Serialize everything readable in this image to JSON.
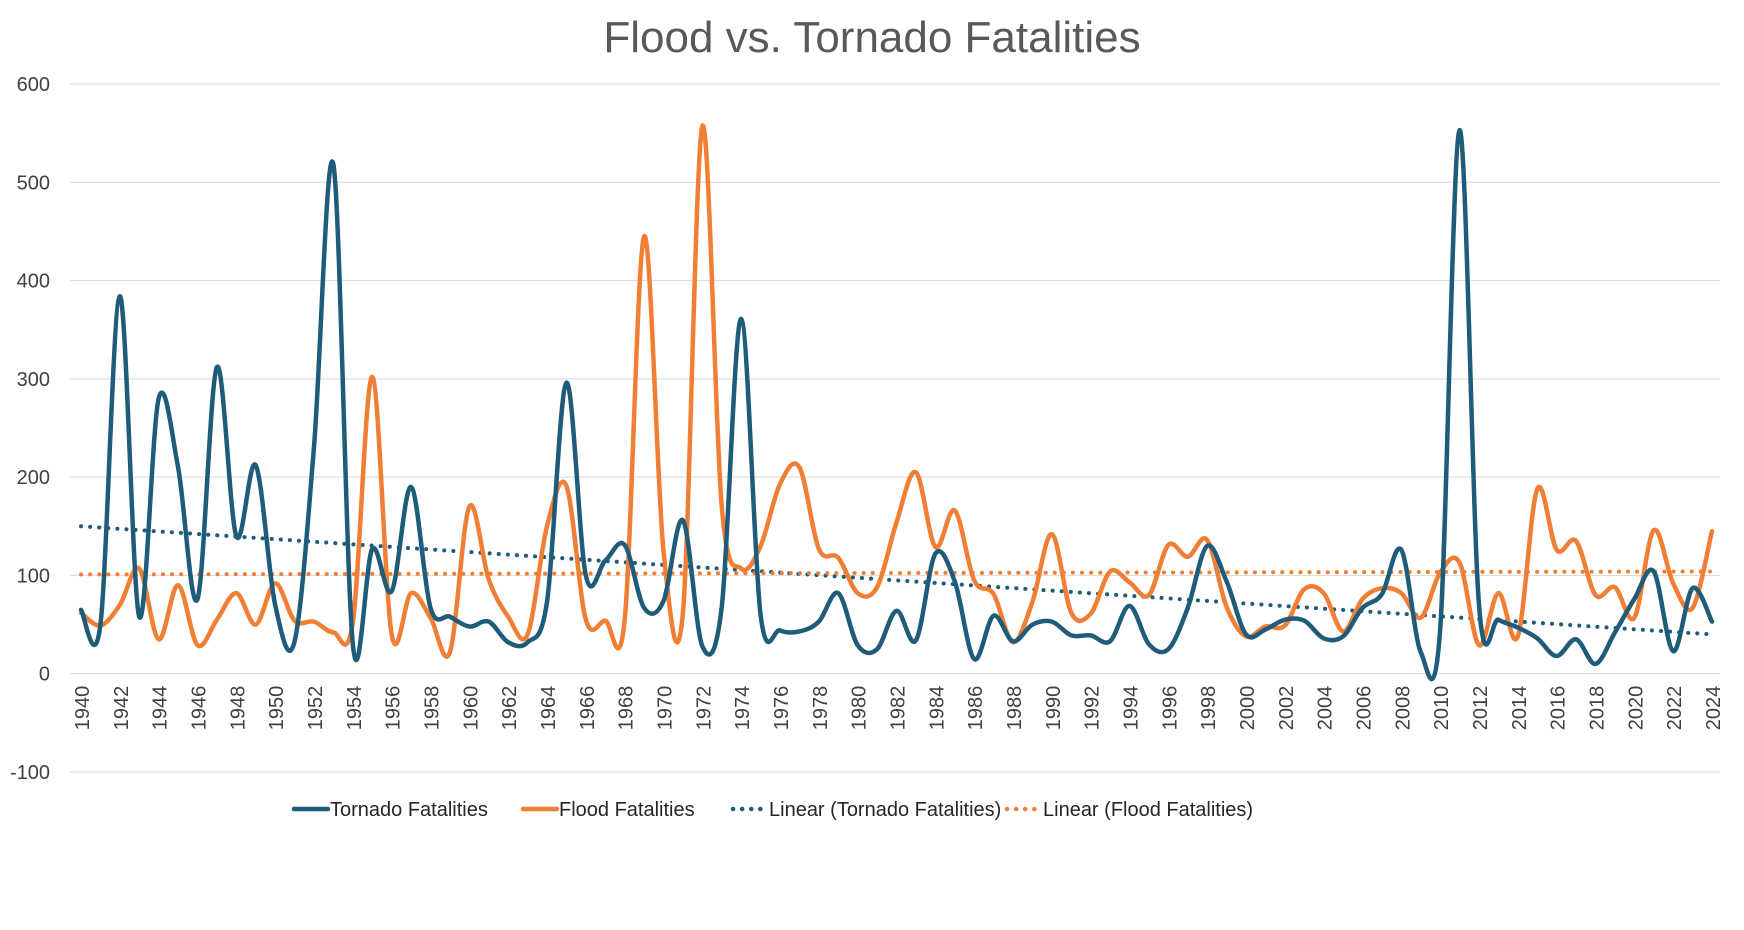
{
  "chart_data": {
    "type": "line",
    "title": "Flood vs. Tornado Fatalities",
    "xlabel": "",
    "ylabel": "",
    "ylim": [
      -100,
      600
    ],
    "yticks": [
      -100,
      0,
      100,
      200,
      300,
      400,
      500,
      600
    ],
    "grid": true,
    "legend_position": "bottom",
    "x": [
      1940,
      1941,
      1942,
      1943,
      1944,
      1945,
      1946,
      1947,
      1948,
      1949,
      1950,
      1951,
      1952,
      1953,
      1954,
      1955,
      1956,
      1957,
      1958,
      1959,
      1960,
      1961,
      1962,
      1963,
      1964,
      1965,
      1966,
      1967,
      1968,
      1969,
      1970,
      1971,
      1972,
      1973,
      1974,
      1975,
      1976,
      1977,
      1978,
      1979,
      1980,
      1981,
      1982,
      1983,
      1984,
      1985,
      1986,
      1987,
      1988,
      1989,
      1990,
      1991,
      1992,
      1993,
      1994,
      1995,
      1996,
      1997,
      1998,
      1999,
      2000,
      2001,
      2002,
      2003,
      2004,
      2005,
      2006,
      2007,
      2008,
      2009,
      2010,
      2011,
      2012,
      2013,
      2014,
      2015,
      2016,
      2017,
      2018,
      2019,
      2020,
      2021,
      2022,
      2023,
      2024
    ],
    "xtick_labels": [
      "1940",
      "1942",
      "1944",
      "1946",
      "1948",
      "1950",
      "1952",
      "1954",
      "1956",
      "1958",
      "1960",
      "1962",
      "1964",
      "1966",
      "1968",
      "1970",
      "1972",
      "1974",
      "1976",
      "1978",
      "1980",
      "1982",
      "1984",
      "1986",
      "1988",
      "1990",
      "1992",
      "1994",
      "1996",
      "1998",
      "2000",
      "2002",
      "2004",
      "2006",
      "2008",
      "2010",
      "2012",
      "2014",
      "2016",
      "2018",
      "2020",
      "2022",
      "2024"
    ],
    "series": [
      {
        "name": "Tornado Fatalities",
        "style": "solid",
        "color": "#1f5c7a",
        "values": [
          65,
          50,
          384,
          58,
          280,
          210,
          76,
          312,
          140,
          212,
          70,
          33,
          231,
          518,
          30,
          127,
          84,
          190,
          67,
          58,
          48,
          53,
          32,
          32,
          73,
          296,
          100,
          115,
          131,
          67,
          74,
          156,
          28,
          68,
          361,
          60,
          44,
          43,
          53,
          82,
          29,
          25,
          64,
          34,
          122,
          94,
          15,
          59,
          33,
          50,
          53,
          39,
          39,
          33,
          69,
          30,
          25,
          67,
          130,
          94,
          40,
          45,
          55,
          54,
          36,
          38,
          67,
          81,
          126,
          22,
          45,
          553,
          70,
          55,
          47,
          36,
          18,
          35,
          10,
          42,
          76,
          104,
          23,
          87,
          53
        ]
      },
      {
        "name": "Flood Fatalities",
        "style": "solid",
        "color": "#f07f35",
        "values": [
          62,
          49,
          70,
          107,
          35,
          90,
          29,
          55,
          82,
          50,
          92,
          54,
          53,
          42,
          52,
          302,
          40,
          82,
          57,
          22,
          170,
          96,
          58,
          40,
          150,
          191,
          55,
          54,
          55,
          445,
          125,
          62,
          557,
          170,
          107,
          130,
          193,
          210,
          127,
          118,
          82,
          88,
          154,
          205,
          129,
          166,
          95,
          81,
          32,
          73,
          142,
          62,
          61,
          104,
          93,
          80,
          131,
          119,
          136,
          68,
          38,
          48,
          49,
          86,
          82,
          43,
          76,
          87,
          82,
          57,
          103,
          113,
          29,
          82,
          38,
          188,
          126,
          135,
          80,
          88,
          57,
          146,
          92,
          67,
          145
        ]
      },
      {
        "name": "Linear (Tornado Fatalities)",
        "style": "dotted",
        "color": "#1f5c7a",
        "trend_start": [
          1940,
          150
        ],
        "trend_end": [
          2024,
          40
        ]
      },
      {
        "name": "Linear (Flood Fatalities)",
        "style": "dotted",
        "color": "#f07f35",
        "trend_start": [
          1940,
          101
        ],
        "trend_end": [
          2024,
          104
        ]
      }
    ]
  }
}
